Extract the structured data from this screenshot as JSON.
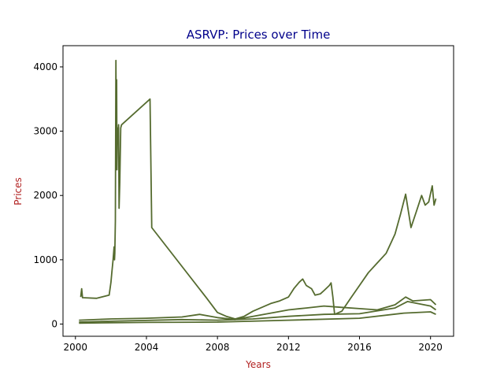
{
  "chart_data": {
    "type": "line",
    "title": "ASRVP: Prices over Time",
    "xlabel": "Years",
    "ylabel": "Prices",
    "xlim": [
      1999.3,
      2021.3
    ],
    "ylim": [
      -190,
      4330
    ],
    "x_ticks": [
      2000,
      2004,
      2008,
      2012,
      2016,
      2020
    ],
    "x_tick_labels": [
      "2000",
      "2004",
      "2008",
      "2012",
      "2016",
      "2020"
    ],
    "y_ticks": [
      0,
      1000,
      2000,
      3000,
      4000
    ],
    "y_tick_labels": [
      "0",
      "1000",
      "2000",
      "3000",
      "4000"
    ],
    "grid": false,
    "legend": "none",
    "series": [
      {
        "points": [
          [
            2000.3,
            420
          ],
          [
            2000.35,
            550
          ],
          [
            2000.4,
            410
          ],
          [
            2001.2,
            400
          ],
          [
            2001.9,
            450
          ],
          [
            2002.0,
            650
          ],
          [
            2002.05,
            800
          ],
          [
            2002.12,
            1000
          ],
          [
            2002.18,
            1200
          ],
          [
            2002.2,
            1000
          ],
          [
            2002.22,
            1100
          ],
          [
            2002.25,
            1600
          ],
          [
            2002.28,
            4100
          ],
          [
            2002.3,
            3000
          ],
          [
            2002.32,
            3800
          ],
          [
            2002.34,
            2400
          ],
          [
            2002.37,
            3050
          ],
          [
            2002.4,
            2900
          ],
          [
            2002.43,
            3100
          ],
          [
            2002.46,
            1800
          ],
          [
            2002.5,
            2200
          ],
          [
            2002.55,
            3050
          ],
          [
            2002.6,
            3100
          ],
          [
            2004.2,
            3500
          ],
          [
            2004.3,
            1500
          ],
          [
            2007.4,
            400
          ],
          [
            2008.0,
            180
          ],
          [
            2008.5,
            120
          ],
          [
            2009.0,
            80
          ],
          [
            2009.5,
            120
          ],
          [
            2010.0,
            200
          ],
          [
            2010.5,
            260
          ],
          [
            2011.0,
            320
          ],
          [
            2011.5,
            360
          ],
          [
            2012.0,
            420
          ],
          [
            2012.3,
            550
          ],
          [
            2012.6,
            650
          ],
          [
            2012.8,
            700
          ],
          [
            2013.0,
            600
          ],
          [
            2013.3,
            550
          ],
          [
            2013.5,
            450
          ],
          [
            2013.8,
            470
          ],
          [
            2014.0,
            520
          ],
          [
            2014.3,
            600
          ],
          [
            2014.4,
            640
          ],
          [
            2014.5,
            420
          ],
          [
            2014.6,
            150
          ],
          [
            2015.0,
            200
          ],
          [
            2015.5,
            400
          ],
          [
            2016.0,
            600
          ],
          [
            2016.5,
            800
          ],
          [
            2017.0,
            950
          ],
          [
            2017.5,
            1100
          ],
          [
            2018.0,
            1400
          ],
          [
            2018.3,
            1700
          ],
          [
            2018.6,
            2020
          ],
          [
            2018.9,
            1500
          ],
          [
            2019.2,
            1750
          ],
          [
            2019.5,
            2000
          ],
          [
            2019.7,
            1850
          ],
          [
            2019.9,
            1900
          ],
          [
            2020.1,
            2150
          ],
          [
            2020.2,
            1850
          ],
          [
            2020.3,
            1950
          ]
        ]
      },
      {
        "points": [
          [
            2000.2,
            60
          ],
          [
            2002.0,
            80
          ],
          [
            2004.0,
            90
          ],
          [
            2006.0,
            110
          ],
          [
            2007.0,
            150
          ],
          [
            2008.0,
            100
          ],
          [
            2009.0,
            70
          ],
          [
            2010.0,
            120
          ],
          [
            2011.0,
            170
          ],
          [
            2012.0,
            220
          ],
          [
            2013.0,
            250
          ],
          [
            2014.0,
            280
          ],
          [
            2015.0,
            260
          ],
          [
            2016.0,
            240
          ],
          [
            2017.0,
            220
          ],
          [
            2018.0,
            300
          ],
          [
            2018.6,
            420
          ],
          [
            2019.0,
            360
          ],
          [
            2020.0,
            380
          ],
          [
            2020.3,
            300
          ]
        ]
      },
      {
        "points": [
          [
            2000.2,
            30
          ],
          [
            2003.0,
            50
          ],
          [
            2006.0,
            70
          ],
          [
            2008.0,
            60
          ],
          [
            2010.0,
            80
          ],
          [
            2012.0,
            120
          ],
          [
            2014.0,
            150
          ],
          [
            2016.0,
            160
          ],
          [
            2018.0,
            250
          ],
          [
            2018.7,
            350
          ],
          [
            2020.0,
            280
          ],
          [
            2020.3,
            220
          ]
        ]
      },
      {
        "points": [
          [
            2000.2,
            15
          ],
          [
            2004.0,
            25
          ],
          [
            2008.0,
            30
          ],
          [
            2012.0,
            60
          ],
          [
            2016.0,
            90
          ],
          [
            2018.5,
            170
          ],
          [
            2020.0,
            190
          ],
          [
            2020.3,
            150
          ]
        ]
      }
    ]
  }
}
